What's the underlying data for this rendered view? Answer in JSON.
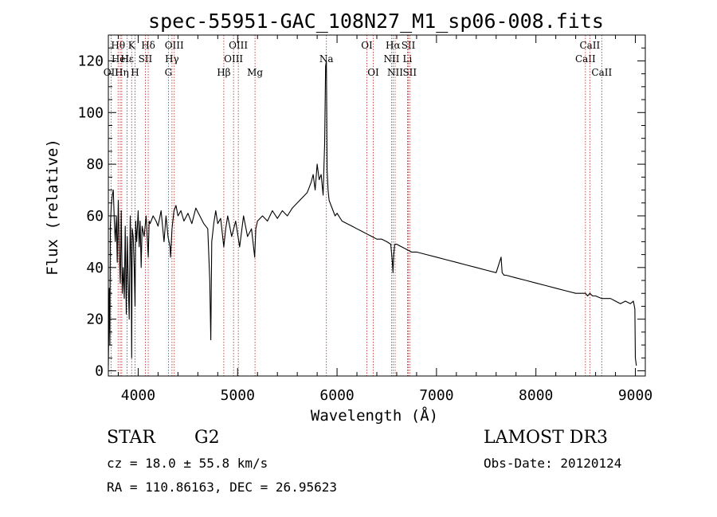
{
  "chart_data": {
    "type": "line",
    "title": "spec-55951-GAC_108N27_M1_sp06-008.fits",
    "xlabel": "Wavelength (Å)",
    "ylabel": "Flux (relative)",
    "xlim": [
      3700,
      9100
    ],
    "ylim": [
      -2,
      130
    ],
    "x_ticks": [
      4000,
      5000,
      6000,
      7000,
      8000,
      9000
    ],
    "y_ticks": [
      0,
      20,
      40,
      60,
      80,
      100,
      120
    ],
    "x_tick_labels": [
      "4000",
      "5000",
      "6000",
      "7000",
      "8000",
      "9000"
    ],
    "y_tick_labels": [
      "0",
      "20",
      "40",
      "60",
      "80",
      "100",
      "120"
    ],
    "series": [
      {
        "name": "Flux",
        "x": [
          3700,
          3710,
          3715,
          3720,
          3730,
          3740,
          3750,
          3760,
          3770,
          3780,
          3790,
          3800,
          3810,
          3820,
          3830,
          3840,
          3850,
          3860,
          3870,
          3880,
          3890,
          3900,
          3910,
          3920,
          3930,
          3935,
          3940,
          3950,
          3960,
          3968,
          3975,
          3985,
          4000,
          4010,
          4020,
          4030,
          4040,
          4060,
          4080,
          4101,
          4110,
          4120,
          4150,
          4180,
          4200,
          4230,
          4260,
          4280,
          4300,
          4320,
          4326,
          4340,
          4360,
          4380,
          4400,
          4430,
          4460,
          4500,
          4540,
          4580,
          4620,
          4660,
          4700,
          4720,
          4730,
          4740,
          4760,
          4780,
          4800,
          4830,
          4861,
          4880,
          4900,
          4940,
          4980,
          5020,
          5060,
          5100,
          5140,
          5172,
          5183,
          5200,
          5250,
          5300,
          5350,
          5400,
          5450,
          5500,
          5550,
          5600,
          5650,
          5700,
          5740,
          5760,
          5780,
          5800,
          5820,
          5840,
          5860,
          5875,
          5885,
          5893,
          5900,
          5910,
          5920,
          5940,
          5960,
          5980,
          6000,
          6050,
          6100,
          6150,
          6200,
          6250,
          6300,
          6350,
          6400,
          6450,
          6500,
          6540,
          6556,
          6563,
          6570,
          6580,
          6600,
          6650,
          6700,
          6750,
          6800,
          6900,
          7000,
          7100,
          7200,
          7300,
          7400,
          7500,
          7600,
          7650,
          7660,
          7680,
          7700,
          7800,
          7900,
          8000,
          8100,
          8200,
          8300,
          8400,
          8498,
          8520,
          8542,
          8570,
          8600,
          8662,
          8700,
          8750,
          8800,
          8850,
          8900,
          8950,
          8980,
          8995,
          9000,
          9010
        ],
        "y": [
          2,
          32,
          10,
          56,
          64,
          68,
          70,
          58,
          50,
          60,
          42,
          66,
          46,
          34,
          62,
          30,
          40,
          28,
          56,
          22,
          52,
          34,
          20,
          60,
          40,
          5,
          55,
          52,
          40,
          25,
          58,
          50,
          62,
          48,
          58,
          40,
          56,
          52,
          60,
          44,
          58,
          57,
          60,
          58,
          56,
          62,
          50,
          60,
          52,
          48,
          44,
          55,
          62,
          64,
          60,
          62,
          58,
          61,
          57,
          63,
          60,
          57,
          55,
          35,
          12,
          50,
          57,
          62,
          57,
          59,
          48,
          55,
          60,
          52,
          58,
          48,
          60,
          52,
          55,
          44,
          55,
          58,
          60,
          58,
          62,
          59,
          62,
          60,
          63,
          65,
          67,
          69,
          73,
          76,
          70,
          80,
          74,
          76,
          68,
          88,
          118,
          120,
          78,
          70,
          66,
          64,
          62,
          60,
          61,
          58,
          57,
          56,
          55,
          54,
          53,
          52,
          51,
          51,
          50,
          49,
          42,
          38,
          45,
          49,
          49,
          48,
          47,
          46,
          46,
          45,
          44,
          43,
          42,
          41,
          40,
          39,
          38,
          44,
          38,
          37,
          37,
          36,
          35,
          34,
          33,
          32,
          31,
          30,
          30,
          29,
          30,
          29,
          29,
          28,
          28,
          28,
          27,
          26,
          27,
          26,
          27,
          24,
          5,
          2
        ]
      }
    ],
    "lines": [
      {
        "name": "OII",
        "x": 3727,
        "row": 3
      },
      {
        "name": "Hθ",
        "x": 3798,
        "row": 1
      },
      {
        "name": "HeI",
        "x": 3820,
        "row": 2
      },
      {
        "name": "Hη",
        "x": 3835,
        "row": 3
      },
      {
        "name": "Hε",
        "x": 3889,
        "row": 2
      },
      {
        "name": "K",
        "x": 3934,
        "row": 1
      },
      {
        "name": "H",
        "x": 3968,
        "row": 3
      },
      {
        "name": "SII",
        "x": 4072,
        "row": 2
      },
      {
        "name": "Hδ",
        "x": 4101,
        "row": 1
      },
      {
        "name": "G",
        "x": 4304,
        "row": 3
      },
      {
        "name": "OIII",
        "x": 4363,
        "row": 1
      },
      {
        "name": "Hγ",
        "x": 4340,
        "row": 2
      },
      {
        "name": "Hβ",
        "x": 4861,
        "row": 3
      },
      {
        "name": "OIII",
        "x": 4959,
        "row": 2
      },
      {
        "name": "OIII",
        "x": 5007,
        "row": 1
      },
      {
        "name": "Mg",
        "x": 5175,
        "row": 3
      },
      {
        "name": "Na",
        "x": 5893,
        "row": 2
      },
      {
        "name": "OI",
        "x": 6300,
        "row": 1
      },
      {
        "name": "OI",
        "x": 6364,
        "row": 3
      },
      {
        "name": "NII",
        "x": 6548,
        "row": 2
      },
      {
        "name": "Hα",
        "x": 6563,
        "row": 1
      },
      {
        "name": "NII",
        "x": 6584,
        "row": 3
      },
      {
        "name": "Li",
        "x": 6708,
        "row": 2
      },
      {
        "name": "SII",
        "x": 6717,
        "row": 1
      },
      {
        "name": "SII",
        "x": 6731,
        "row": 3
      },
      {
        "name": "CaII",
        "x": 8498,
        "row": 2
      },
      {
        "name": "CaII",
        "x": 8542,
        "row": 1
      },
      {
        "name": "CaII",
        "x": 8662,
        "row": 3
      }
    ]
  },
  "info": {
    "object_class": "STAR",
    "subclass": "G2",
    "survey": "LAMOST DR3",
    "cz": "cz = 18.0 ± 55.8 km/s",
    "obs_date": "Obs-Date: 20120124",
    "coords": "RA = 110.86163, DEC =  26.95623"
  },
  "colors": {
    "spectrum": "#000000",
    "line_marker": "#b22222",
    "background": "#ffffff"
  }
}
